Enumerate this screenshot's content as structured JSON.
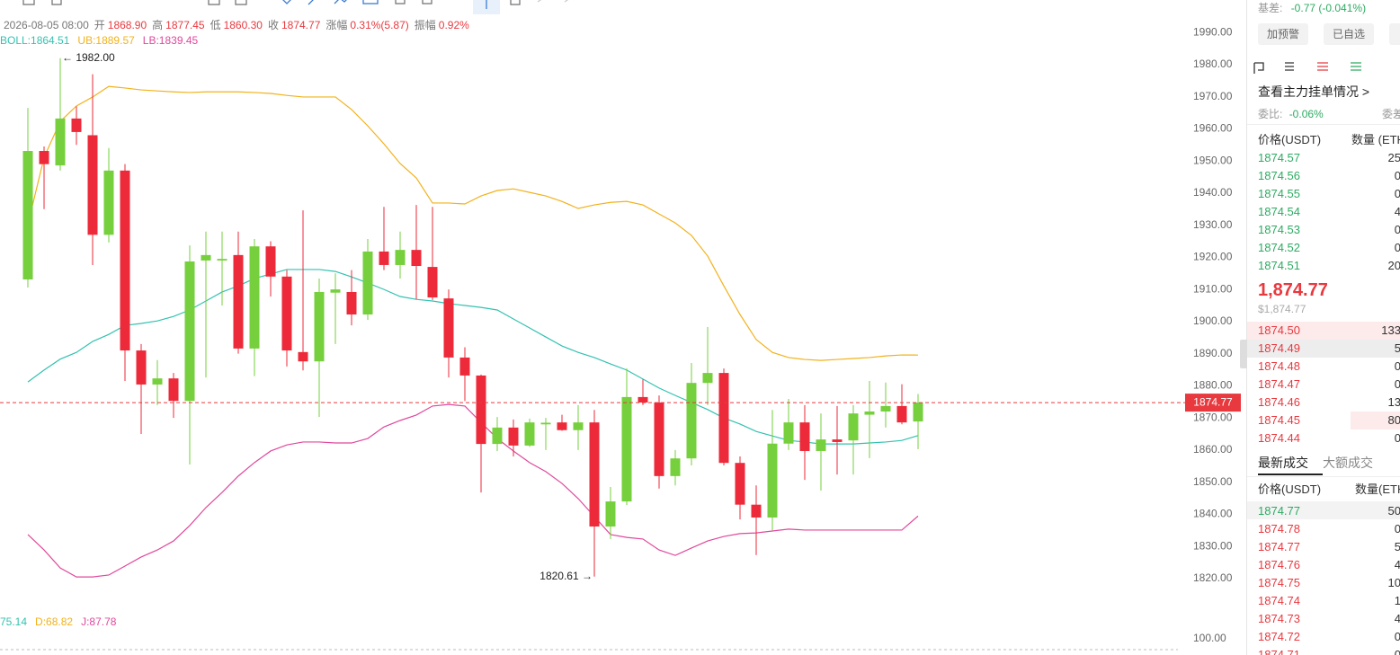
{
  "chart_data": {
    "type": "candlestick",
    "up_color": "#76cf3c",
    "down_color": "#ec2a3a",
    "open": [
      1913.1,
      1953.1,
      1948.6,
      1963.2,
      1958.0,
      1927.0,
      1947.0,
      1891.0,
      1880.4,
      1882.3,
      1875.3,
      1919.0,
      1919.0,
      1920.7,
      1891.6,
      1923.4,
      1914.0,
      1890.5,
      1887.6,
      1909.0,
      1909.2,
      1902.2,
      1921.8,
      1917.6,
      1922.3,
      1917.0,
      1907.2,
      1888.8,
      1883.2,
      1861.9,
      1867.0,
      1861.4,
      1868.0,
      1868.6,
      1866.2,
      1868.6,
      1836.2,
      1844.0,
      1876.5,
      1874.8,
      1851.9,
      1857.4,
      1880.9,
      1884.0,
      1856.0,
      1843.0,
      1839.0,
      1862.0,
      1868.6,
      1859.7,
      1863.3,
      1863.0,
      1871.0,
      1872.0,
      1873.7,
      1868.9
    ],
    "high": [
      1966.5,
      1954.5,
      1982.0,
      1967.0,
      1977.0,
      1954.0,
      1949.0,
      1893.0,
      1888.0,
      1884.0,
      1923.7,
      1928.0,
      1928.0,
      1928.0,
      1925.7,
      1925.0,
      1916.0,
      1934.6,
      1913.4,
      1915.0,
      1916.0,
      1925.7,
      1935.7,
      1928.0,
      1936.3,
      1935.7,
      1910.0,
      1892.0,
      1883.5,
      1870.3,
      1869.5,
      1869.8,
      1870.0,
      1871.0,
      1874.0,
      1872.5,
      1848.5,
      1885.4,
      1882.0,
      1877.0,
      1860.0,
      1887.1,
      1898.3,
      1885.4,
      1858.0,
      1849.0,
      1872.5,
      1875.9,
      1874.0,
      1871.4,
      1873.7,
      1874.0,
      1881.5,
      1881.0,
      1880.5,
      1877.45
    ],
    "low": [
      1910.6,
      1935.0,
      1947.0,
      1955.0,
      1917.6,
      1924.6,
      1881.5,
      1865.0,
      1874.0,
      1870.0,
      1855.5,
      1882.6,
      1905.0,
      1890.0,
      1883.0,
      1907.8,
      1886.0,
      1884.8,
      1870.3,
      1893.0,
      1898.8,
      1900.5,
      1916.0,
      1913.4,
      1907.0,
      1906.7,
      1882.6,
      1875.3,
      1846.8,
      1859.7,
      1858.0,
      1861.0,
      1860.0,
      1866.0,
      1860.0,
      1820.61,
      1832.3,
      1842.9,
      1874.0,
      1848.0,
      1849.0,
      1855.2,
      1874.0,
      1855.2,
      1838.4,
      1827.3,
      1835.0,
      1860.0,
      1850.7,
      1847.4,
      1852.4,
      1852.4,
      1857.5,
      1867.0,
      1868.0,
      1860.3
    ],
    "close": [
      1953.1,
      1949.0,
      1963.2,
      1959.0,
      1927.0,
      1947.0,
      1891.0,
      1880.4,
      1882.3,
      1875.3,
      1918.7,
      1920.7,
      1919.5,
      1891.6,
      1923.4,
      1914.0,
      1891.0,
      1887.6,
      1909.2,
      1910.0,
      1902.2,
      1921.8,
      1917.6,
      1922.3,
      1917.3,
      1907.5,
      1888.8,
      1883.2,
      1861.9,
      1867.0,
      1861.4,
      1868.6,
      1868.5,
      1866.2,
      1868.6,
      1836.2,
      1844.0,
      1876.5,
      1874.8,
      1851.9,
      1857.4,
      1880.9,
      1884.0,
      1856.0,
      1843.0,
      1839.0,
      1862.0,
      1868.6,
      1859.7,
      1863.3,
      1862.5,
      1871.4,
      1872.0,
      1873.7,
      1868.6,
      1874.77
    ],
    "series": [
      {
        "name": "BOLL:1864.51",
        "color": "#33c2b0",
        "values": [
          1881.2,
          1884.9,
          1888.3,
          1890.4,
          1893.8,
          1896.0,
          1898.8,
          1899.4,
          1900.2,
          1901.6,
          1903.6,
          1906.4,
          1909.2,
          1911.1,
          1913.4,
          1914.8,
          1916.2,
          1916.2,
          1916.2,
          1915.6,
          1913.9,
          1912.0,
          1910.0,
          1907.8,
          1906.9,
          1906.4,
          1905.6,
          1905.0,
          1904.4,
          1903.6,
          1900.8,
          1898.0,
          1895.2,
          1892.4,
          1890.4,
          1888.8,
          1886.8,
          1884.9,
          1882.1,
          1879.3,
          1877.0,
          1874.8,
          1872.6,
          1870.0,
          1868.1,
          1865.8,
          1864.4,
          1863.0,
          1862.5,
          1861.9,
          1861.9,
          1861.9,
          1862.2,
          1862.5,
          1863.0,
          1864.51
        ]
      },
      {
        "name": "UB:1889.57",
        "color": "#f2b21b",
        "values": [
          1930.2,
          1951.1,
          1962.3,
          1967.1,
          1969.9,
          1973.2,
          1972.7,
          1972.1,
          1971.8,
          1971.5,
          1971.3,
          1971.5,
          1971.5,
          1971.5,
          1971.3,
          1971.0,
          1970.4,
          1969.9,
          1969.9,
          1969.9,
          1966.0,
          1960.9,
          1955.3,
          1949.2,
          1944.7,
          1936.9,
          1936.9,
          1936.6,
          1939.1,
          1940.8,
          1941.3,
          1940.2,
          1939.1,
          1937.4,
          1935.2,
          1936.3,
          1937.1,
          1937.4,
          1936.3,
          1933.5,
          1930.7,
          1926.8,
          1920.4,
          1911.1,
          1902.2,
          1894.4,
          1890.4,
          1888.8,
          1888.2,
          1887.9,
          1888.2,
          1888.5,
          1888.8,
          1889.3,
          1889.6,
          1889.57
        ]
      },
      {
        "name": "LB:1839.45",
        "color": "#e0489c",
        "values": [
          1833.7,
          1828.9,
          1823.3,
          1820.5,
          1820.5,
          1821.1,
          1823.9,
          1826.7,
          1828.9,
          1831.7,
          1836.5,
          1842.1,
          1846.8,
          1851.9,
          1856.1,
          1859.7,
          1861.6,
          1862.5,
          1862.5,
          1862.2,
          1862.2,
          1863.6,
          1867.2,
          1869.2,
          1870.9,
          1873.7,
          1874.2,
          1873.7,
          1868.6,
          1863.6,
          1859.7,
          1856.1,
          1853.3,
          1849.6,
          1844.9,
          1839.3,
          1833.7,
          1832.8,
          1832.3,
          1828.9,
          1827.2,
          1829.5,
          1831.7,
          1833.1,
          1834.0,
          1834.2,
          1834.8,
          1835.4,
          1835.1,
          1835.1,
          1835.1,
          1835.1,
          1835.1,
          1835.1,
          1835.1,
          1839.45
        ]
      }
    ],
    "ylim": [
      1815.5,
      1994.5
    ],
    "yticks": [
      {
        "value": 1990,
        "label": "1990.00"
      },
      {
        "value": 1980,
        "label": "1980.00"
      },
      {
        "value": 1970,
        "label": "1970.00"
      },
      {
        "value": 1960,
        "label": "1960.00"
      },
      {
        "value": 1950,
        "label": "1950.00"
      },
      {
        "value": 1940,
        "label": "1940.00"
      },
      {
        "value": 1930,
        "label": "1930.00"
      },
      {
        "value": 1920,
        "label": "1920.00"
      },
      {
        "value": 1910,
        "label": "1910.00"
      },
      {
        "value": 1900,
        "label": "1900.00"
      },
      {
        "value": 1890,
        "label": "1890.00"
      },
      {
        "value": 1880,
        "label": "1880.00"
      },
      {
        "value": 1870,
        "label": "1870.00"
      },
      {
        "value": 1860,
        "label": "1860.00"
      },
      {
        "value": 1850,
        "label": "1850.00"
      },
      {
        "value": 1840,
        "label": "1840.00"
      },
      {
        "value": 1830,
        "label": "1830.00"
      },
      {
        "value": 1820,
        "label": "1820.00"
      }
    ],
    "grid": false,
    "annotations": [
      "← 1982.00",
      "1820.61 →"
    ],
    "last_price": {
      "value": 1874.77,
      "label": "1874.77",
      "color": "#e8393f"
    }
  },
  "info": {
    "date": "2026-08-05 08:00",
    "items": [
      {
        "label": "开",
        "value": "1868.90"
      },
      {
        "label": "高",
        "value": "1877.45"
      },
      {
        "label": "低",
        "value": "1860.30"
      },
      {
        "label": "收",
        "value": "1874.77"
      },
      {
        "label": "涨幅",
        "value": "0.31%(5.87)"
      },
      {
        "label": "振幅",
        "value": "0.92%"
      }
    ]
  },
  "kdj": {
    "legend": [
      {
        "text": "75.14",
        "color": "#33c2b0"
      },
      {
        "text": "D:68.82",
        "color": "#f2b21b"
      },
      {
        "text": "J:87.78",
        "color": "#e0489c"
      }
    ],
    "yticks": [
      {
        "value": 100,
        "label": "100.00"
      }
    ]
  },
  "panel": {
    "basis_label": "基差:",
    "basis": "-0.77 (-0.041%)",
    "buttons": [
      "加预警",
      "已自选"
    ],
    "depth_link": "查看主力挂单情况 >",
    "ratio_label": "委比:",
    "ratio": "-0.06%",
    "diff_label": "委差",
    "book_headers": [
      "价格(USDT)",
      "数量 (ETH"
    ],
    "asks": [
      [
        "1874.57",
        "25"
      ],
      [
        "1874.56",
        "0"
      ],
      [
        "1874.55",
        "0"
      ],
      [
        "1874.54",
        "4"
      ],
      [
        "1874.53",
        "0"
      ],
      [
        "1874.52",
        "0"
      ],
      [
        "1874.51",
        "20"
      ]
    ],
    "last": "1,874.77",
    "last_usd": "$1,874.77",
    "bids": [
      [
        "1874.50",
        "133"
      ],
      [
        "1874.49",
        "5"
      ],
      [
        "1874.48",
        "0"
      ],
      [
        "1874.47",
        "0"
      ],
      [
        "1874.46",
        "13"
      ],
      [
        "1874.45",
        "80"
      ],
      [
        "1874.44",
        "0"
      ]
    ],
    "tabs": [
      "最新成交",
      "大额成交"
    ],
    "trade_headers": [
      "价格(USDT)",
      "数量(ETH"
    ],
    "trades": [
      {
        "price": "1874.77",
        "qty": "50",
        "color": "#2dab62"
      },
      {
        "price": "1874.78",
        "qty": "0",
        "color": "#e8393f"
      },
      {
        "price": "1874.77",
        "qty": "5",
        "color": "#e8393f"
      },
      {
        "price": "1874.76",
        "qty": "4",
        "color": "#e8393f"
      },
      {
        "price": "1874.75",
        "qty": "10",
        "color": "#e8393f"
      },
      {
        "price": "1874.74",
        "qty": "1",
        "color": "#e8393f"
      },
      {
        "price": "1874.73",
        "qty": "4",
        "color": "#e8393f"
      },
      {
        "price": "1874.72",
        "qty": "0",
        "color": "#e8393f"
      },
      {
        "price": "1874.71",
        "qty": "0",
        "color": "#e8393f"
      }
    ]
  }
}
